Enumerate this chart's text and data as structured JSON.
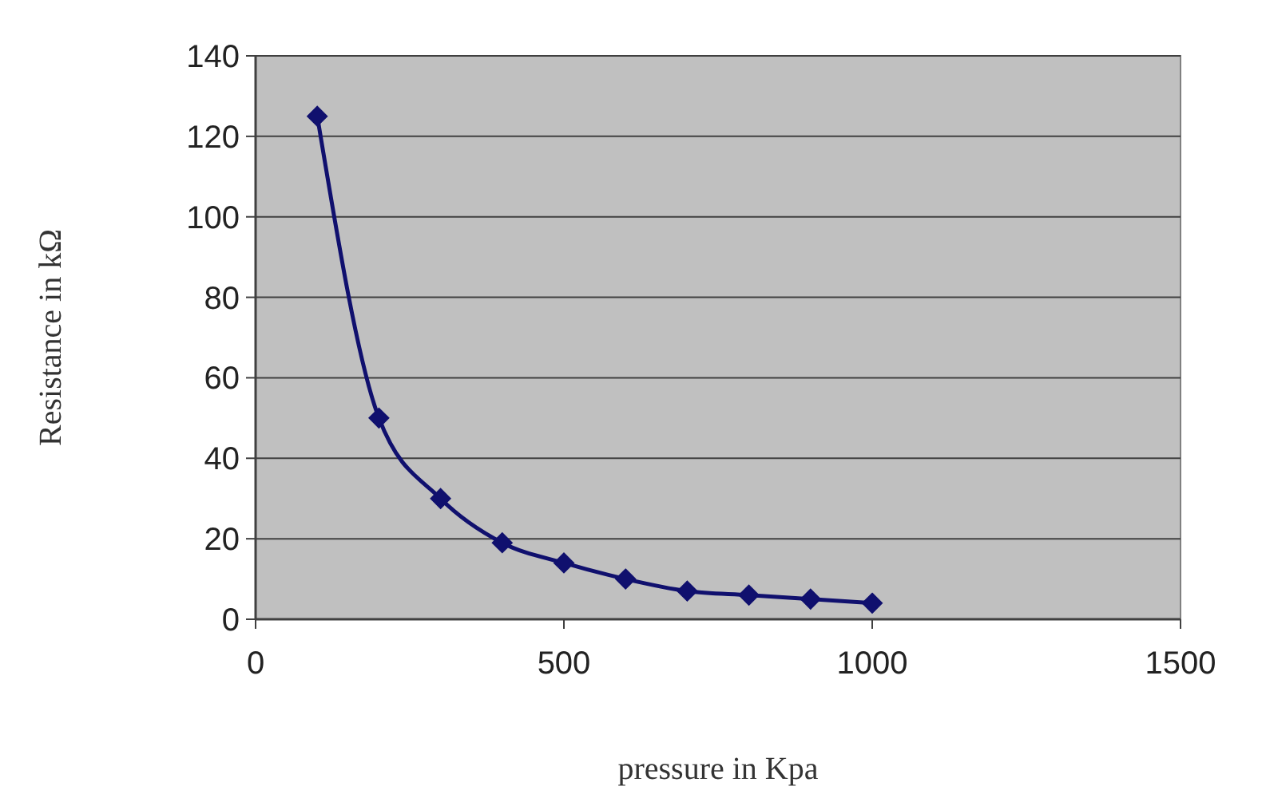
{
  "chart_data": {
    "type": "line",
    "xlabel": "pressure in Kpa",
    "ylabel": "Resistance in kΩ",
    "x": [
      100,
      200,
      300,
      400,
      500,
      600,
      700,
      800,
      900,
      1000
    ],
    "series": [
      {
        "color": "#10106e",
        "values": [
          125,
          50,
          30,
          19,
          14,
          10,
          7,
          6,
          5,
          4
        ]
      }
    ],
    "xlim": [
      0,
      1500
    ],
    "xticks": [
      0,
      500,
      1000,
      1500
    ],
    "ylim": [
      0,
      140
    ],
    "yticks": [
      0,
      20,
      40,
      60,
      80,
      100,
      120,
      140
    ],
    "grid": "y",
    "marker": "diamond",
    "line_style": "solid"
  }
}
